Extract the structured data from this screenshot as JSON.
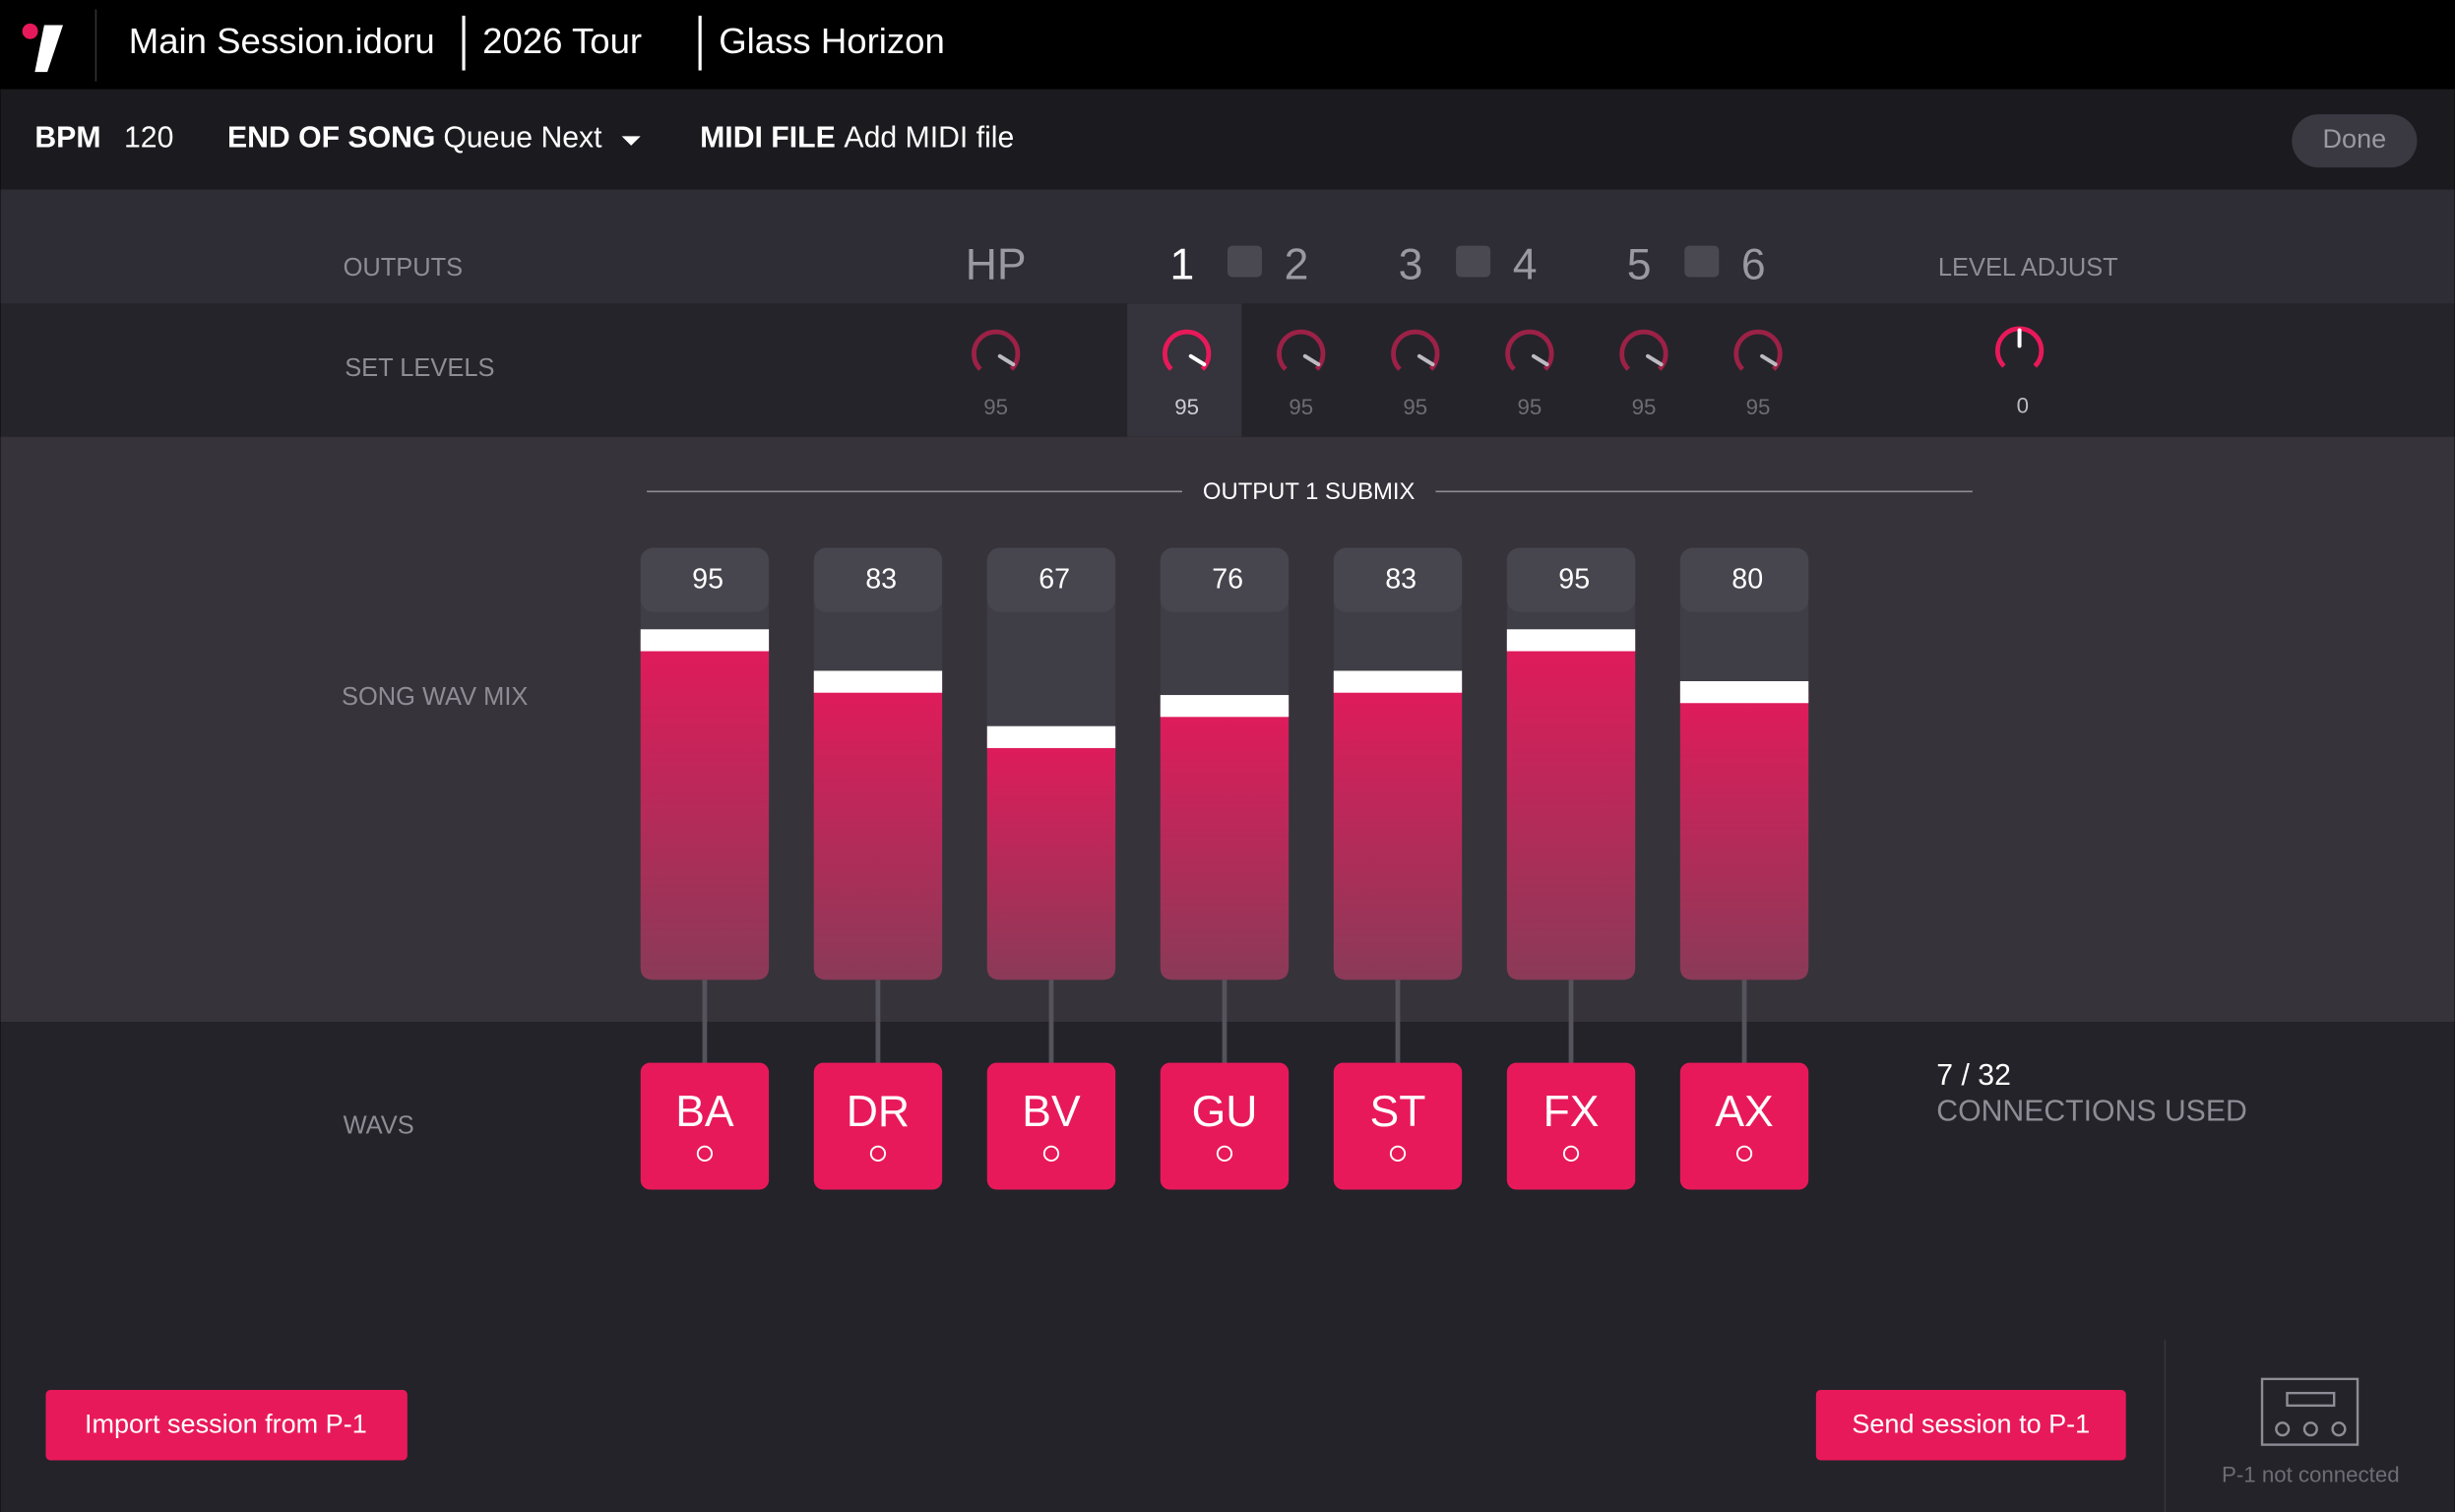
{
  "header": {
    "session": "Main Session.idoru",
    "tour": "2026 Tour",
    "song": "Glass Horizon"
  },
  "toolbar": {
    "bpm_label": "BPM",
    "bpm": 120,
    "end_label": "END OF SONG",
    "end_value": "Queue Next",
    "midi_label": "MIDI FILE",
    "midi_value": "Add MIDI file",
    "done": "Done"
  },
  "outputs": {
    "label": "OUTPUTS",
    "set_levels_label": "SET LEVELS",
    "level_adjust_label": "LEVEL ADJUST",
    "level_adjust": 0,
    "channels": [
      {
        "name": "HP",
        "level": 95
      },
      {
        "name": "1",
        "level": 95
      },
      {
        "name": "2",
        "level": 95
      },
      {
        "name": "3",
        "level": 95
      },
      {
        "name": "4",
        "level": 95
      },
      {
        "name": "5",
        "level": 95
      },
      {
        "name": "6",
        "level": 95
      }
    ]
  },
  "submix": {
    "title": "OUTPUT 1 SUBMIX",
    "row_label": "SONG WAV MIX",
    "wavs_label": "WAVS",
    "tracks": [
      {
        "value": 95,
        "wav": "BA"
      },
      {
        "value": 83,
        "wav": "DR"
      },
      {
        "value": 67,
        "wav": "BV"
      },
      {
        "value": 76,
        "wav": "GU"
      },
      {
        "value": 83,
        "wav": "ST"
      },
      {
        "value": 95,
        "wav": "FX"
      },
      {
        "value": 80,
        "wav": "AX"
      }
    ]
  },
  "connections": {
    "count": "7 / 32",
    "label": "CONNECTIONS USED"
  },
  "buttons": {
    "import": "Import session from P-1",
    "send": "Send session to P-1"
  },
  "device_status": "P-1 not connected"
}
